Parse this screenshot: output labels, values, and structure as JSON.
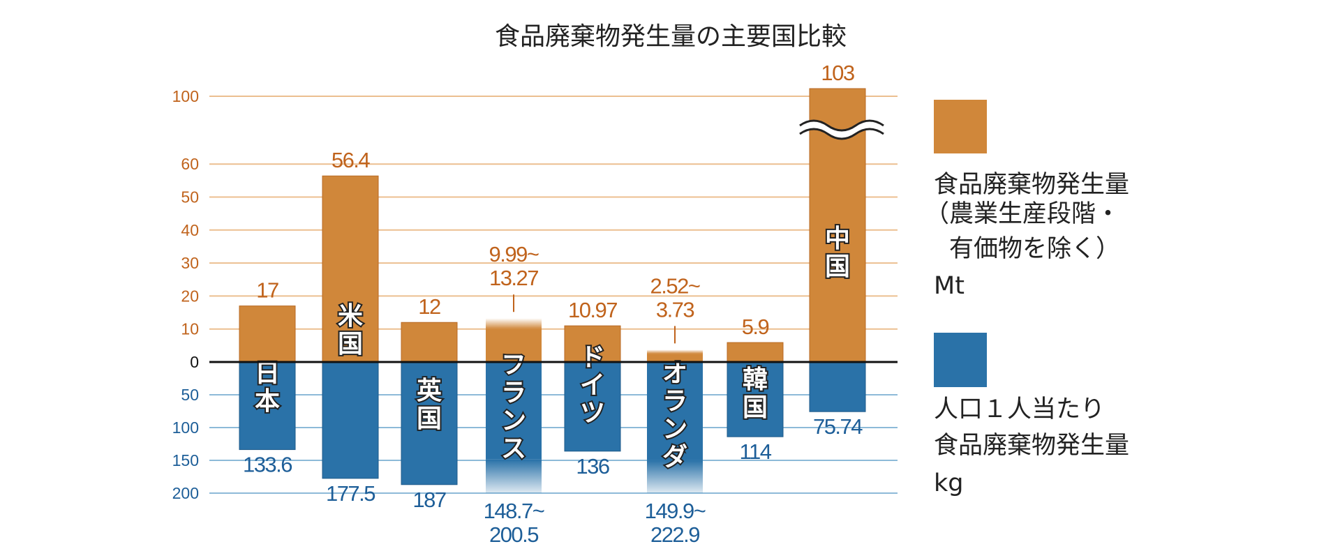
{
  "chart_data": {
    "type": "bar",
    "title": "食品廃棄物発生量の主要国比較",
    "categories": [
      "日本",
      "米国",
      "英国",
      "フランス",
      "ドイツ",
      "オランダ",
      "韓国",
      "中国"
    ],
    "series": [
      {
        "name": "食品廃棄物発生量（農業生産段階・有価物を除く）Mt",
        "color": "#d0873a",
        "label_color": "#c0631c",
        "values": [
          17,
          56.4,
          12,
          [
            9.99,
            13.27
          ],
          10.97,
          [
            2.52,
            3.73
          ],
          5.9,
          103
        ],
        "labels": [
          [
            "17"
          ],
          [
            "56.4"
          ],
          [
            "12"
          ],
          [
            "9.99~",
            "13.27"
          ],
          [
            "10.97"
          ],
          [
            "2.52~",
            "3.73"
          ],
          [
            "5.9"
          ],
          [
            "103"
          ]
        ]
      },
      {
        "name": "人口１人当たり食品廃棄物発生量 kg",
        "color": "#2a72a8",
        "label_color": "#1d5e98",
        "values": [
          133.6,
          177.5,
          187,
          [
            148.7,
            200.5
          ],
          136,
          [
            149.9,
            222.9
          ],
          114,
          75.74
        ],
        "labels": [
          [
            "133.6"
          ],
          [
            "177.5"
          ],
          [
            "187"
          ],
          [
            "148.7~",
            "200.5"
          ],
          [
            "136"
          ],
          [
            "149.9~",
            "222.9"
          ],
          [
            "114"
          ],
          [
            "75.74"
          ]
        ]
      }
    ],
    "upper_axis": {
      "ticks": [
        0,
        10,
        20,
        30,
        40,
        50,
        60,
        100
      ],
      "axis_break": "60-100 (China bar broken)"
    },
    "lower_axis": {
      "ticks": [
        0,
        50,
        100,
        150,
        200
      ],
      "direction": "downward"
    },
    "grid": true,
    "legend_position": "right",
    "legend": [
      {
        "lines": [
          "食品廃棄物発生量",
          "（農業生産段階・",
          "　有価物を除く）",
          "Mt"
        ]
      },
      {
        "lines": [
          "人口１人当たり",
          "食品廃棄物発生量",
          "kg"
        ]
      }
    ]
  }
}
